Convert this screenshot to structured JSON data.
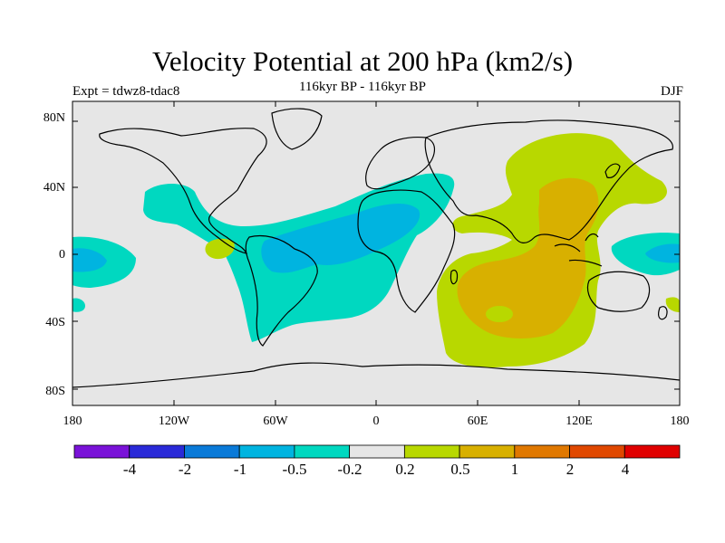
{
  "title": "Velocity Potential at 200 hPa (km2/s)",
  "subtitle": "116kyr BP - 116kyr BP",
  "left_string": "Expt = tdwz8-tdac8",
  "right_string": "DJF",
  "map": {
    "projection": "cylindrical-equidistant",
    "lon_range": [
      -180,
      180
    ],
    "lat_range": [
      -90,
      90
    ],
    "lat_ticks": [
      "80N",
      "40N",
      "0",
      "40S",
      "80S"
    ],
    "lon_ticks": [
      "180",
      "120W",
      "60W",
      "0",
      "60E",
      "120E",
      "180"
    ],
    "background_color": "#e6e6e6",
    "coastline_color": "#000000"
  },
  "colorbar": {
    "colors": [
      "#7a12d8",
      "#2a2ad8",
      "#0a7ad8",
      "#00b4e0",
      "#00d8c0",
      "#e6e6e6",
      "#b8d800",
      "#d8b000",
      "#e07800",
      "#e04800",
      "#e00000"
    ],
    "labels": [
      "-4",
      "-2",
      "-1",
      "-0.5",
      "-0.2",
      "0.2",
      "0.5",
      "1",
      "2",
      "4"
    ]
  },
  "field_colors": {
    "neg_weak": "#00d8c0",
    "neg_mid": "#00b4e0",
    "pos_weak": "#b8d800",
    "pos_mid": "#d8b000"
  }
}
